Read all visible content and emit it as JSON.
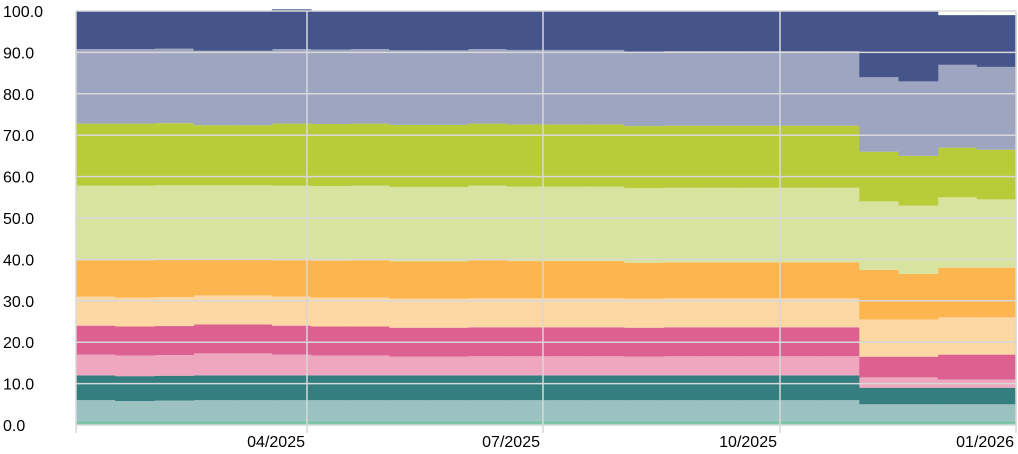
{
  "chart_data": {
    "type": "area",
    "stacked": true,
    "step": true,
    "title": "",
    "xlabel": "",
    "ylabel": "",
    "ylim": [
      0,
      100
    ],
    "yticks": [
      "0.0",
      "10.0",
      "20.0",
      "30.0",
      "40.0",
      "50.0",
      "60.0",
      "70.0",
      "80.0",
      "90.0",
      "100.0"
    ],
    "xticks": [
      "04/2025",
      "07/2025",
      "10/2025",
      "01/2026"
    ],
    "x_start": "2025-01",
    "x_end": "2026-01",
    "grid": true,
    "legend": "none",
    "periods": 24,
    "series": [
      {
        "color": "#7fc4a8",
        "values": [
          1,
          1,
          1,
          1,
          1,
          1,
          1,
          1,
          1,
          1,
          1,
          1,
          1,
          1,
          1,
          1,
          1,
          1,
          1,
          1,
          1,
          1,
          1,
          1
        ]
      },
      {
        "color": "#9bc1c1",
        "values": [
          5,
          4.8,
          4.9,
          5,
          5,
          5,
          5,
          5,
          5,
          5,
          5,
          5,
          5,
          5,
          5,
          5,
          5,
          5,
          5,
          5,
          4,
          4,
          4,
          4
        ]
      },
      {
        "color": "#357e80",
        "values": [
          6,
          6,
          6,
          6,
          6,
          6,
          6,
          6,
          6,
          6,
          6,
          6,
          6,
          6,
          6,
          6,
          6,
          6,
          6,
          6,
          4,
          4,
          4,
          4
        ]
      },
      {
        "color": "#efa7c0",
        "values": [
          5,
          5,
          5,
          5.3,
          5.3,
          5,
          4.8,
          4.8,
          4.5,
          4.5,
          4.6,
          4.6,
          4.6,
          4.6,
          4.5,
          4.6,
          4.6,
          4.6,
          4.6,
          4.6,
          2.5,
          2.5,
          2,
          2
        ]
      },
      {
        "color": "#dc6190",
        "values": [
          7,
          7,
          7,
          7,
          7,
          7,
          7,
          7,
          7,
          7,
          7,
          7,
          7,
          7,
          7,
          7,
          7,
          7,
          7,
          7,
          5,
          5,
          6,
          6
        ]
      },
      {
        "color": "#fdd8a4",
        "values": [
          7,
          7,
          7,
          7,
          7,
          7,
          7,
          7,
          7,
          7,
          7,
          7,
          7,
          7,
          7,
          7,
          7,
          7,
          7,
          7,
          9,
          9,
          9,
          9
        ]
      },
      {
        "color": "#fcb54f",
        "values": [
          8.8,
          9,
          9,
          8.6,
          8.6,
          8.8,
          8.9,
          9,
          9,
          9,
          9.2,
          9,
          9,
          9,
          8.7,
          8.7,
          8.7,
          8.7,
          8.7,
          8.7,
          12,
          11,
          12,
          12
        ]
      },
      {
        "color": "#d8e3a0",
        "values": [
          18,
          18,
          18,
          18,
          18,
          18,
          18,
          18,
          18,
          18,
          18,
          18,
          18,
          18,
          18,
          18,
          18,
          18,
          18,
          18,
          16.5,
          16.5,
          17,
          16.5
        ]
      },
      {
        "color": "#b8cb38",
        "values": [
          15,
          15,
          15,
          14.5,
          14.5,
          15,
          15,
          15,
          15,
          15,
          15,
          15,
          15,
          15,
          15,
          15,
          15,
          15,
          15,
          15,
          12,
          12,
          12,
          12
        ]
      },
      {
        "color": "#9da5c0",
        "values": [
          18,
          18,
          18,
          18,
          18,
          18,
          18,
          18,
          18,
          18,
          18,
          18,
          18,
          18,
          18,
          18,
          18,
          18,
          18,
          18,
          18,
          18,
          20,
          20
        ]
      },
      {
        "color": "#45548a",
        "values": [
          9.2,
          9.2,
          9.1,
          9.6,
          9.6,
          9.6,
          9.3,
          9.2,
          9.5,
          9.5,
          9.2,
          9.4,
          9.4,
          9.4,
          9.8,
          9.7,
          9.7,
          9.7,
          9.7,
          9.7,
          16,
          17,
          12,
          12.5
        ]
      }
    ]
  }
}
